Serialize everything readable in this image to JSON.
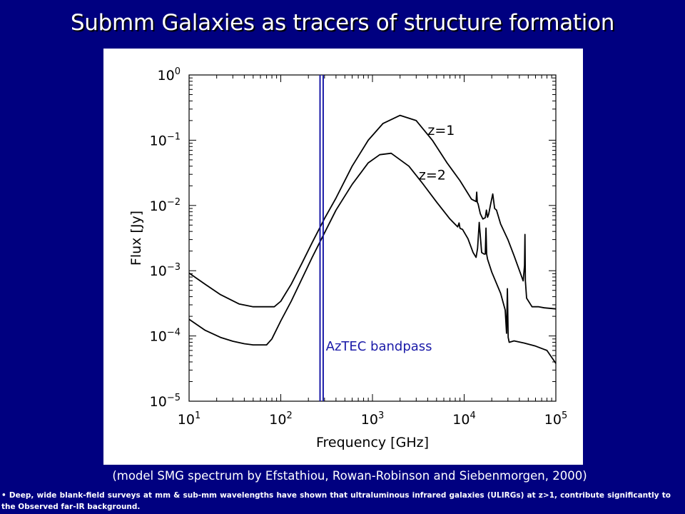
{
  "slide": {
    "title": "Submm Galaxies as tracers of structure formation",
    "caption": "(model SMG spectrum by Efstathiou, Rowan-Robinson and Siebenmorgen, 2000)",
    "bullet_marker": "•",
    "bullet_text": "Deep, wide blank-field surveys at mm & sub-mm wavelengths have shown that ultraluminous infrared galaxies (ULIRGs) at z>1, contribute significantly to the Observed far-IR background."
  },
  "colors": {
    "background": "#000080",
    "plot_background": "#ffffff",
    "curve": "#000000",
    "bandpass": "#1a1aa8",
    "text": "#ffffff"
  },
  "chart_data": {
    "type": "line",
    "xlabel": "Frequency [GHz]",
    "ylabel": "Flux [Jy]",
    "xscale": "log",
    "yscale": "log",
    "xlim": [
      10,
      100000
    ],
    "ylim": [
      1e-05,
      1
    ],
    "x_ticks": [
      10,
      100,
      1000,
      10000,
      100000
    ],
    "x_tick_labels": [
      {
        "base": "10",
        "exp": "1"
      },
      {
        "base": "10",
        "exp": "2"
      },
      {
        "base": "10",
        "exp": "3"
      },
      {
        "base": "10",
        "exp": "4"
      },
      {
        "base": "10",
        "exp": "5"
      }
    ],
    "y_ticks": [
      1e-05,
      0.0001,
      0.001,
      0.01,
      0.1,
      1
    ],
    "y_tick_labels": [
      {
        "base": "10",
        "exp": "−5"
      },
      {
        "base": "10",
        "exp": "−4"
      },
      {
        "base": "10",
        "exp": "−3"
      },
      {
        "base": "10",
        "exp": "−2"
      },
      {
        "base": "10",
        "exp": "−1"
      },
      {
        "base": "10",
        "exp": "0"
      }
    ],
    "grid": false,
    "series": [
      {
        "name": "z=1",
        "color": "#000000",
        "x": [
          10,
          15,
          22,
          35,
          50,
          70,
          85,
          100,
          130,
          170,
          220,
          300,
          400,
          600,
          900,
          1300,
          2000,
          3000,
          4500,
          6500,
          9000,
          12000,
          13500,
          13700,
          13900,
          14200,
          15000,
          16000,
          17000,
          17500,
          18000,
          18500,
          19500,
          20500,
          21500,
          22500,
          25000,
          30000,
          35000,
          44000,
          45500,
          46000,
          46500,
          48000,
          55000,
          65000,
          75000,
          100000
        ],
        "y": [
          0.00092,
          0.00062,
          0.00043,
          0.00031,
          0.00028,
          0.00028,
          0.00028,
          0.00034,
          0.00062,
          0.0013,
          0.0027,
          0.0063,
          0.013,
          0.04,
          0.1,
          0.18,
          0.24,
          0.2,
          0.1,
          0.045,
          0.024,
          0.0125,
          0.0115,
          0.016,
          0.0112,
          0.0105,
          0.0075,
          0.0062,
          0.0065,
          0.0085,
          0.0066,
          0.0073,
          0.0107,
          0.015,
          0.009,
          0.0085,
          0.0052,
          0.003,
          0.0017,
          0.0007,
          0.0012,
          0.0036,
          0.0007,
          0.00038,
          0.00028,
          0.00028,
          0.00027,
          0.00026
        ]
      },
      {
        "name": "z=2",
        "color": "#000000",
        "x": [
          10,
          15,
          22,
          30,
          40,
          50,
          60,
          70,
          80,
          100,
          130,
          170,
          220,
          300,
          400,
          600,
          900,
          1200,
          1600,
          2500,
          3500,
          5000,
          7000,
          8500,
          8800,
          9000,
          9200,
          9600,
          11000,
          12500,
          13500,
          14000,
          14600,
          15500,
          16500,
          17000,
          17300,
          17600,
          18000,
          20000,
          25000,
          28000,
          29000,
          29600,
          30200,
          31000,
          35000,
          45000,
          60000,
          80000,
          100000
        ],
        "y": [
          0.00018,
          0.000122,
          9.5e-05,
          8.3e-05,
          7.6e-05,
          7.3e-05,
          7.3e-05,
          7.3e-05,
          9e-05,
          0.00017,
          0.00034,
          0.00075,
          0.0016,
          0.0038,
          0.0085,
          0.021,
          0.045,
          0.06,
          0.063,
          0.04,
          0.022,
          0.0113,
          0.0062,
          0.0047,
          0.0054,
          0.0045,
          0.0044,
          0.0043,
          0.0031,
          0.0019,
          0.0016,
          0.0022,
          0.0055,
          0.0019,
          0.0018,
          0.0018,
          0.0045,
          0.0018,
          0.0015,
          0.00095,
          0.00045,
          0.00025,
          0.00011,
          0.00053,
          9.5e-05,
          8e-05,
          8.4e-05,
          7.8e-05,
          7e-05,
          6e-05,
          3.8e-05
        ]
      }
    ],
    "bandpass": {
      "label": "AzTEC bandpass",
      "x": [
        268,
        290
      ]
    },
    "annotations": [
      {
        "text": "z=1",
        "x": 4000,
        "y": 0.12
      },
      {
        "text": "z=2",
        "x": 3200,
        "y": 0.025
      },
      {
        "text": "AzTEC bandpass",
        "x": 310,
        "y": 6e-05
      }
    ]
  }
}
